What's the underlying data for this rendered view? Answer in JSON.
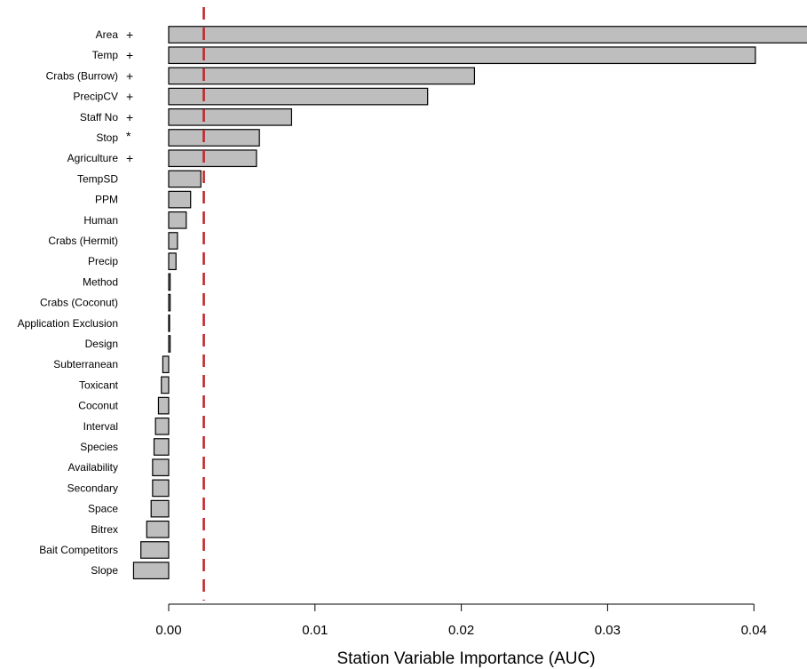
{
  "chart_data": {
    "type": "bar",
    "orientation": "horizontal",
    "xlabel": "Station Variable Importance (AUC)",
    "xlim": [
      -0.0024,
      0.0435
    ],
    "xticks": [
      0.0,
      0.01,
      0.02,
      0.03,
      0.04
    ],
    "xtick_labels": [
      "0.00",
      "0.01",
      "0.02",
      "0.03",
      "0.04"
    ],
    "reference_line": {
      "x": 0.0024,
      "color": "#c0272d",
      "style": "dashed"
    },
    "bar_color": "#bebebe",
    "categories": [
      "Area",
      "Temp",
      "Crabs (Burrow)",
      "PrecipCV",
      "Staff No",
      "Stop",
      "Agriculture",
      "TempSD",
      "PPM",
      "Human",
      "Crabs (Hermit)",
      "Precip",
      "Method",
      "Crabs (Coconut)",
      "Application Exclusion",
      "Design",
      "Subterranean",
      "Toxicant",
      "Coconut",
      "Interval",
      "Species",
      "Availability",
      "Secondary",
      "Space",
      "Bitrex",
      "Bait Competitors",
      "Slope"
    ],
    "markers": [
      "+",
      "+",
      "+",
      "+",
      "+",
      "*",
      "+",
      "",
      "",
      "",
      "",
      "",
      "",
      "",
      "",
      "",
      "",
      "",
      "",
      "",
      "",
      "",
      "",
      "",
      "",
      "",
      ""
    ],
    "values": [
      0.044,
      0.0401,
      0.0209,
      0.0177,
      0.0084,
      0.0062,
      0.006,
      0.0022,
      0.0015,
      0.0012,
      0.0006,
      0.0005,
      0.0001,
      0.0001,
      3e-05,
      0.0001,
      -0.0004,
      -0.0005,
      -0.0007,
      -0.0009,
      -0.001,
      -0.0011,
      -0.0011,
      -0.0012,
      -0.0015,
      -0.0019,
      -0.0024
    ]
  }
}
